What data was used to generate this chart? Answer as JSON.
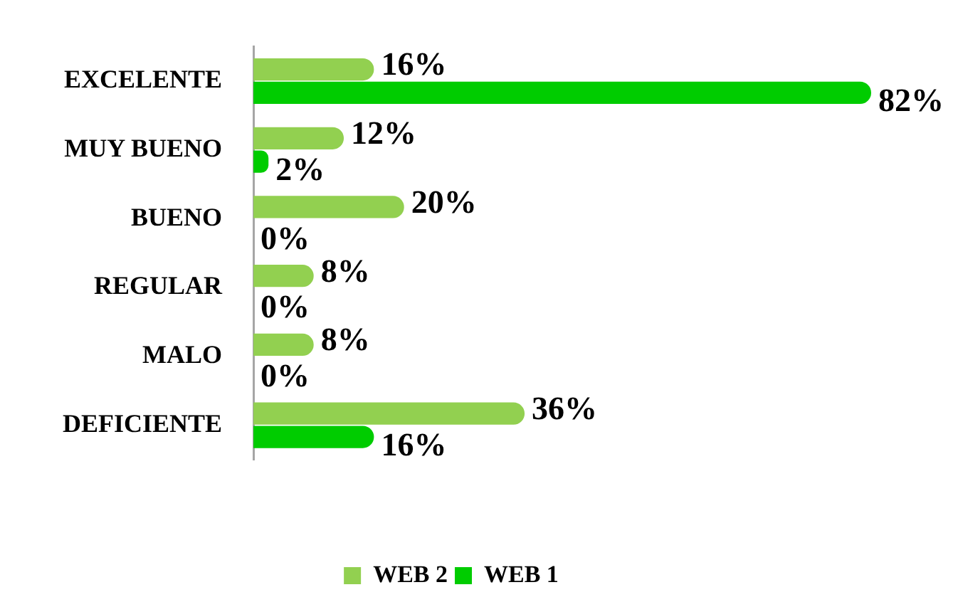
{
  "chart_data": {
    "type": "bar",
    "orientation": "horizontal",
    "categories": [
      "EXCELENTE",
      "MUY BUENO",
      "BUENO",
      "REGULAR",
      "MALO",
      "DEFICIENTE"
    ],
    "series": [
      {
        "name": "WEB 2",
        "color": "#92d050",
        "values": [
          16,
          12,
          20,
          8,
          8,
          36
        ],
        "value_labels": [
          "16%",
          "12%",
          "20%",
          "8%",
          "8%",
          "36%"
        ]
      },
      {
        "name": "WEB 1",
        "color": "#00cc00",
        "values": [
          82,
          2,
          0,
          0,
          0,
          16
        ],
        "value_labels": [
          "82%",
          "2%",
          "0%",
          "0%",
          "0%",
          "16%"
        ]
      }
    ],
    "legend": "bottom",
    "tick_labels": "y"
  }
}
